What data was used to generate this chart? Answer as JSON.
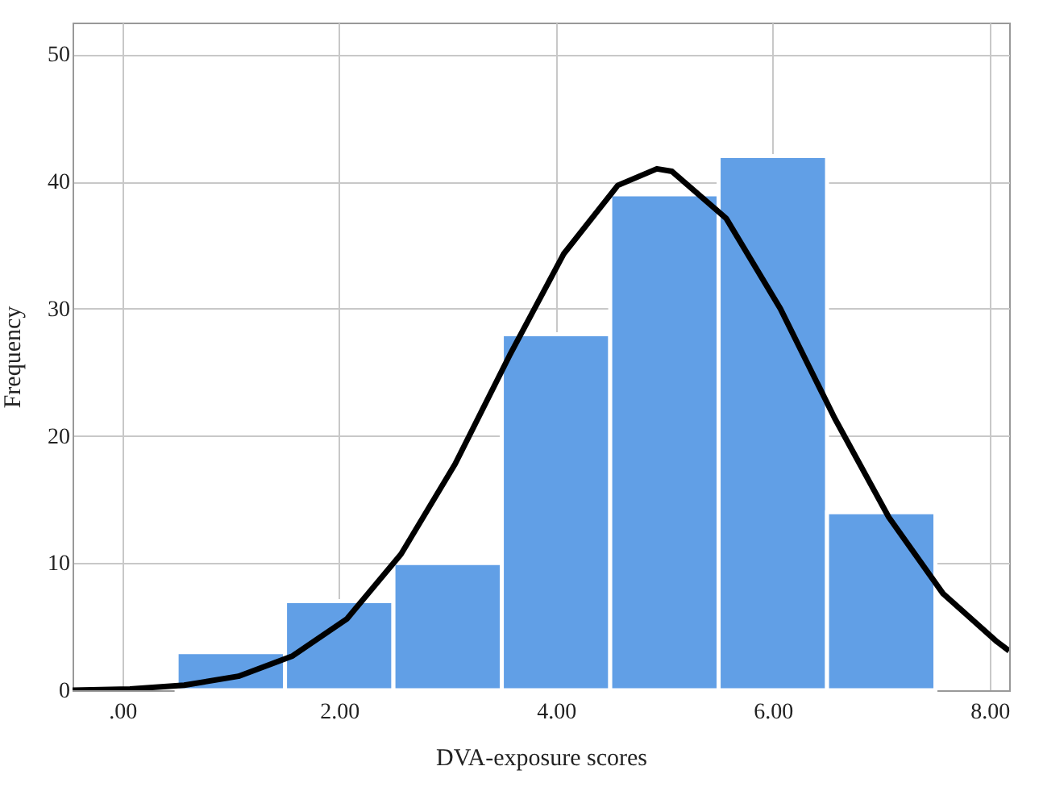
{
  "chart_data": {
    "type": "histogram",
    "xlabel": "DVA-exposure scores",
    "ylabel": "Frequency",
    "bins": [
      0.5,
      1.5,
      2.5,
      3.5,
      4.5,
      5.5,
      6.5,
      7.5
    ],
    "values": [
      3,
      7,
      10,
      28,
      39,
      42,
      14
    ],
    "color": "#619fe6",
    "series": [
      {
        "type": "line",
        "color": "#000000",
        "x": [
          -0.46,
          0.07,
          0.57,
          1.07,
          1.57,
          2.07,
          2.57,
          3.07,
          3.57,
          4.07,
          4.57,
          4.93,
          5.07,
          5.57,
          6.07,
          6.57,
          7.07,
          7.57,
          8.07,
          8.18
        ],
        "values": [
          0,
          0.1,
          0.4,
          1.1,
          2.7,
          5.6,
          10.7,
          17.8,
          26.3,
          34.3,
          39.7,
          41,
          40.8,
          37.1,
          30,
          21.4,
          13.6,
          7.6,
          3.8,
          3.1
        ]
      }
    ],
    "xlim": [
      -0.46,
      8.18
    ],
    "ylim": [
      0,
      52.5
    ],
    "xticks": [
      {
        "value": 0,
        "label": ".00"
      },
      {
        "value": 2,
        "label": "2.00"
      },
      {
        "value": 4,
        "label": "4.00"
      },
      {
        "value": 6,
        "label": "6.00"
      },
      {
        "value": 8,
        "label": "8.00"
      }
    ],
    "yticks": [
      0,
      10,
      20,
      30,
      40,
      50
    ],
    "grid": true
  }
}
